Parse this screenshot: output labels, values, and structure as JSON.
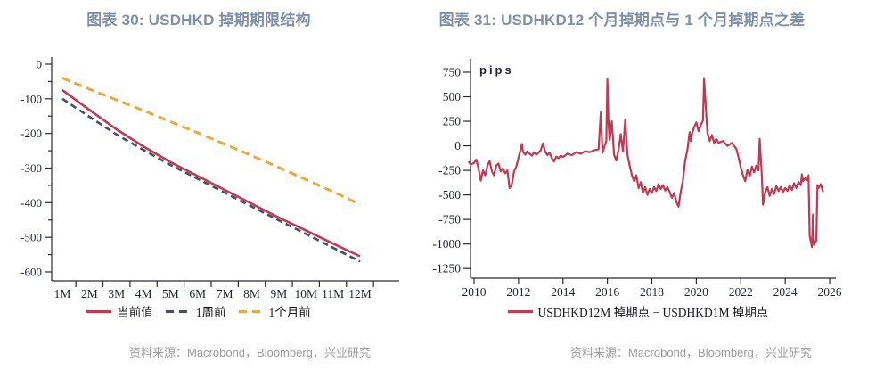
{
  "figures": [
    {
      "title": "图表 30: USDHKD 掉期期限结构",
      "source": "资料来源：Macrobond，Bloomberg，兴业研究",
      "chart_data": {
        "type": "line",
        "categories": [
          "1M",
          "2M",
          "3M",
          "4M",
          "5M",
          "6M",
          "7M",
          "8M",
          "9M",
          "10M",
          "11M",
          "12M"
        ],
        "ylim": [
          -600,
          0
        ],
        "y_ticks": [
          0,
          -100,
          -200,
          -300,
          -400,
          -500,
          -600
        ],
        "grid": false,
        "legend_position": "bottom",
        "series": [
          {
            "name": "当前值",
            "color": "#c23a52",
            "dash": "solid",
            "width": 2.6,
            "values": [
              -75,
              -132,
              -188,
              -238,
              -283,
              -323,
              -363,
              -403,
              -443,
              -480,
              -518,
              -555
            ]
          },
          {
            "name": "1周前",
            "color": "#44506b",
            "dash": "dashed",
            "width": 2.6,
            "values": [
              -100,
              -152,
              -203,
              -248,
              -291,
              -331,
              -371,
              -411,
              -451,
              -490,
              -530,
              -570
            ]
          },
          {
            "name": "1个月前",
            "color": "#eaa93c",
            "dash": "dashed",
            "width": 3,
            "values": [
              -40,
              -72,
              -103,
              -134,
              -166,
              -198,
              -231,
              -264,
              -298,
              -333,
              -368,
              -405
            ]
          }
        ]
      }
    },
    {
      "title": "图表 31: USDHKD12 个月掉期点与 1 个月掉期点之差",
      "unit_label": "pips",
      "source": "资料来源：Macrobond，Bloomberg，兴业研究",
      "chart_data": {
        "type": "line",
        "xlim": [
          2009.6,
          2026.4
        ],
        "ylim": [
          -1340,
          880
        ],
        "x_ticks": [
          2010,
          2012,
          2014,
          2016,
          2018,
          2020,
          2022,
          2024,
          2026
        ],
        "y_ticks": [
          750,
          500,
          250,
          0,
          -250,
          -500,
          -750,
          -1000,
          -1250
        ],
        "grid": false,
        "legend_position": "bottom",
        "series": [
          {
            "name": "USDHKD12M 掉期点 − USDHKD1M 掉期点",
            "color": "#c23a52",
            "dash": "solid",
            "width": 2.2,
            "points": [
              [
                2009.75,
                -160
              ],
              [
                2009.85,
                -190
              ],
              [
                2010.0,
                -175
              ],
              [
                2010.1,
                -140
              ],
              [
                2010.2,
                -230
              ],
              [
                2010.3,
                -355
              ],
              [
                2010.4,
                -250
              ],
              [
                2010.5,
                -300
              ],
              [
                2010.6,
                -200
              ],
              [
                2010.7,
                -155
              ],
              [
                2010.8,
                -260
              ],
              [
                2010.9,
                -300
              ],
              [
                2011.0,
                -200
              ],
              [
                2011.1,
                -180
              ],
              [
                2011.2,
                -260
              ],
              [
                2011.3,
                -230
              ],
              [
                2011.4,
                -280
              ],
              [
                2011.5,
                -250
              ],
              [
                2011.6,
                -430
              ],
              [
                2011.7,
                -390
              ],
              [
                2011.8,
                -260
              ],
              [
                2011.9,
                -210
              ],
              [
                2012.0,
                -120
              ],
              [
                2012.1,
                -30
              ],
              [
                2012.15,
                20
              ],
              [
                2012.2,
                -60
              ],
              [
                2012.3,
                -90
              ],
              [
                2012.4,
                -55
              ],
              [
                2012.5,
                -80
              ],
              [
                2012.6,
                -100
              ],
              [
                2012.7,
                -65
              ],
              [
                2012.8,
                -90
              ],
              [
                2012.9,
                -70
              ],
              [
                2013.0,
                -45
              ],
              [
                2013.1,
                25
              ],
              [
                2013.2,
                -60
              ],
              [
                2013.3,
                -95
              ],
              [
                2013.4,
                -70
              ],
              [
                2013.5,
                -125
              ],
              [
                2013.6,
                -160
              ],
              [
                2013.7,
                -110
              ],
              [
                2013.8,
                -125
              ],
              [
                2013.9,
                -100
              ],
              [
                2014.0,
                -115
              ],
              [
                2014.2,
                -80
              ],
              [
                2014.4,
                -95
              ],
              [
                2014.6,
                -65
              ],
              [
                2014.8,
                -80
              ],
              [
                2015.0,
                -55
              ],
              [
                2015.2,
                -65
              ],
              [
                2015.4,
                -45
              ],
              [
                2015.6,
                -35
              ],
              [
                2015.7,
                340
              ],
              [
                2015.78,
                -70
              ],
              [
                2015.85,
                -15
              ],
              [
                2015.95,
                50
              ],
              [
                2016.0,
                680
              ],
              [
                2016.05,
                230
              ],
              [
                2016.1,
                60
              ],
              [
                2016.2,
                250
              ],
              [
                2016.3,
                -90
              ],
              [
                2016.4,
                -150
              ],
              [
                2016.5,
                -40
              ],
              [
                2016.6,
                120
              ],
              [
                2016.7,
                -60
              ],
              [
                2016.8,
                265
              ],
              [
                2016.9,
                -90
              ],
              [
                2017.0,
                -200
              ],
              [
                2017.1,
                -300
              ],
              [
                2017.2,
                -360
              ],
              [
                2017.3,
                -300
              ],
              [
                2017.4,
                -430
              ],
              [
                2017.5,
                -370
              ],
              [
                2017.6,
                -480
              ],
              [
                2017.7,
                -420
              ],
              [
                2017.8,
                -500
              ],
              [
                2017.9,
                -440
              ],
              [
                2018.0,
                -480
              ],
              [
                2018.1,
                -420
              ],
              [
                2018.2,
                -460
              ],
              [
                2018.3,
                -390
              ],
              [
                2018.4,
                -440
              ],
              [
                2018.5,
                -400
              ],
              [
                2018.6,
                -455
              ],
              [
                2018.7,
                -420
              ],
              [
                2018.8,
                -470
              ],
              [
                2018.9,
                -530
              ],
              [
                2019.0,
                -480
              ],
              [
                2019.1,
                -570
              ],
              [
                2019.2,
                -620
              ],
              [
                2019.3,
                -470
              ],
              [
                2019.4,
                -350
              ],
              [
                2019.5,
                -150
              ],
              [
                2019.6,
                -40
              ],
              [
                2019.7,
                140
              ],
              [
                2019.75,
                50
              ],
              [
                2019.8,
                120
              ],
              [
                2019.9,
                190
              ],
              [
                2020.0,
                240
              ],
              [
                2020.1,
                150
              ],
              [
                2020.2,
                210
              ],
              [
                2020.3,
                260
              ],
              [
                2020.35,
                690
              ],
              [
                2020.45,
                310
              ],
              [
                2020.5,
                130
              ],
              [
                2020.6,
                50
              ],
              [
                2020.7,
                110
              ],
              [
                2020.8,
                30
              ],
              [
                2020.9,
                70
              ],
              [
                2021.0,
                30
              ],
              [
                2021.2,
                50
              ],
              [
                2021.4,
                0
              ],
              [
                2021.6,
                30
              ],
              [
                2021.8,
                -30
              ],
              [
                2021.9,
                -120
              ],
              [
                2022.0,
                -220
              ],
              [
                2022.1,
                -300
              ],
              [
                2022.2,
                -360
              ],
              [
                2022.3,
                -240
              ],
              [
                2022.4,
                -310
              ],
              [
                2022.5,
                -210
              ],
              [
                2022.6,
                -270
              ],
              [
                2022.7,
                -200
              ],
              [
                2022.8,
                -250
              ],
              [
                2022.85,
                70
              ],
              [
                2022.95,
                -320
              ],
              [
                2023.0,
                -600
              ],
              [
                2023.1,
                -470
              ],
              [
                2023.2,
                -420
              ],
              [
                2023.3,
                -510
              ],
              [
                2023.4,
                -440
              ],
              [
                2023.5,
                -490
              ],
              [
                2023.6,
                -410
              ],
              [
                2023.7,
                -460
              ],
              [
                2023.8,
                -420
              ],
              [
                2023.9,
                -470
              ],
              [
                2024.0,
                -430
              ],
              [
                2024.1,
                -460
              ],
              [
                2024.2,
                -400
              ],
              [
                2024.3,
                -450
              ],
              [
                2024.4,
                -380
              ],
              [
                2024.5,
                -430
              ],
              [
                2024.6,
                -370
              ],
              [
                2024.7,
                -400
              ],
              [
                2024.75,
                -290
              ],
              [
                2024.8,
                -360
              ],
              [
                2024.9,
                -330
              ],
              [
                2025.0,
                -350
              ],
              [
                2025.05,
                -300
              ],
              [
                2025.1,
                -920
              ],
              [
                2025.2,
                -1030
              ],
              [
                2025.25,
                -700
              ],
              [
                2025.3,
                -1010
              ],
              [
                2025.4,
                -960
              ],
              [
                2025.45,
                -400
              ],
              [
                2025.5,
                -430
              ],
              [
                2025.6,
                -390
              ],
              [
                2025.7,
                -470
              ]
            ]
          }
        ]
      }
    }
  ],
  "colors": {
    "title": "#7e8fac",
    "axis": "#2a2a2a",
    "axis_text": "#1f2433",
    "source_text": "#9b9b9b",
    "red": "#c23a52",
    "navy": "#44506b",
    "yellow": "#eaa93c"
  }
}
